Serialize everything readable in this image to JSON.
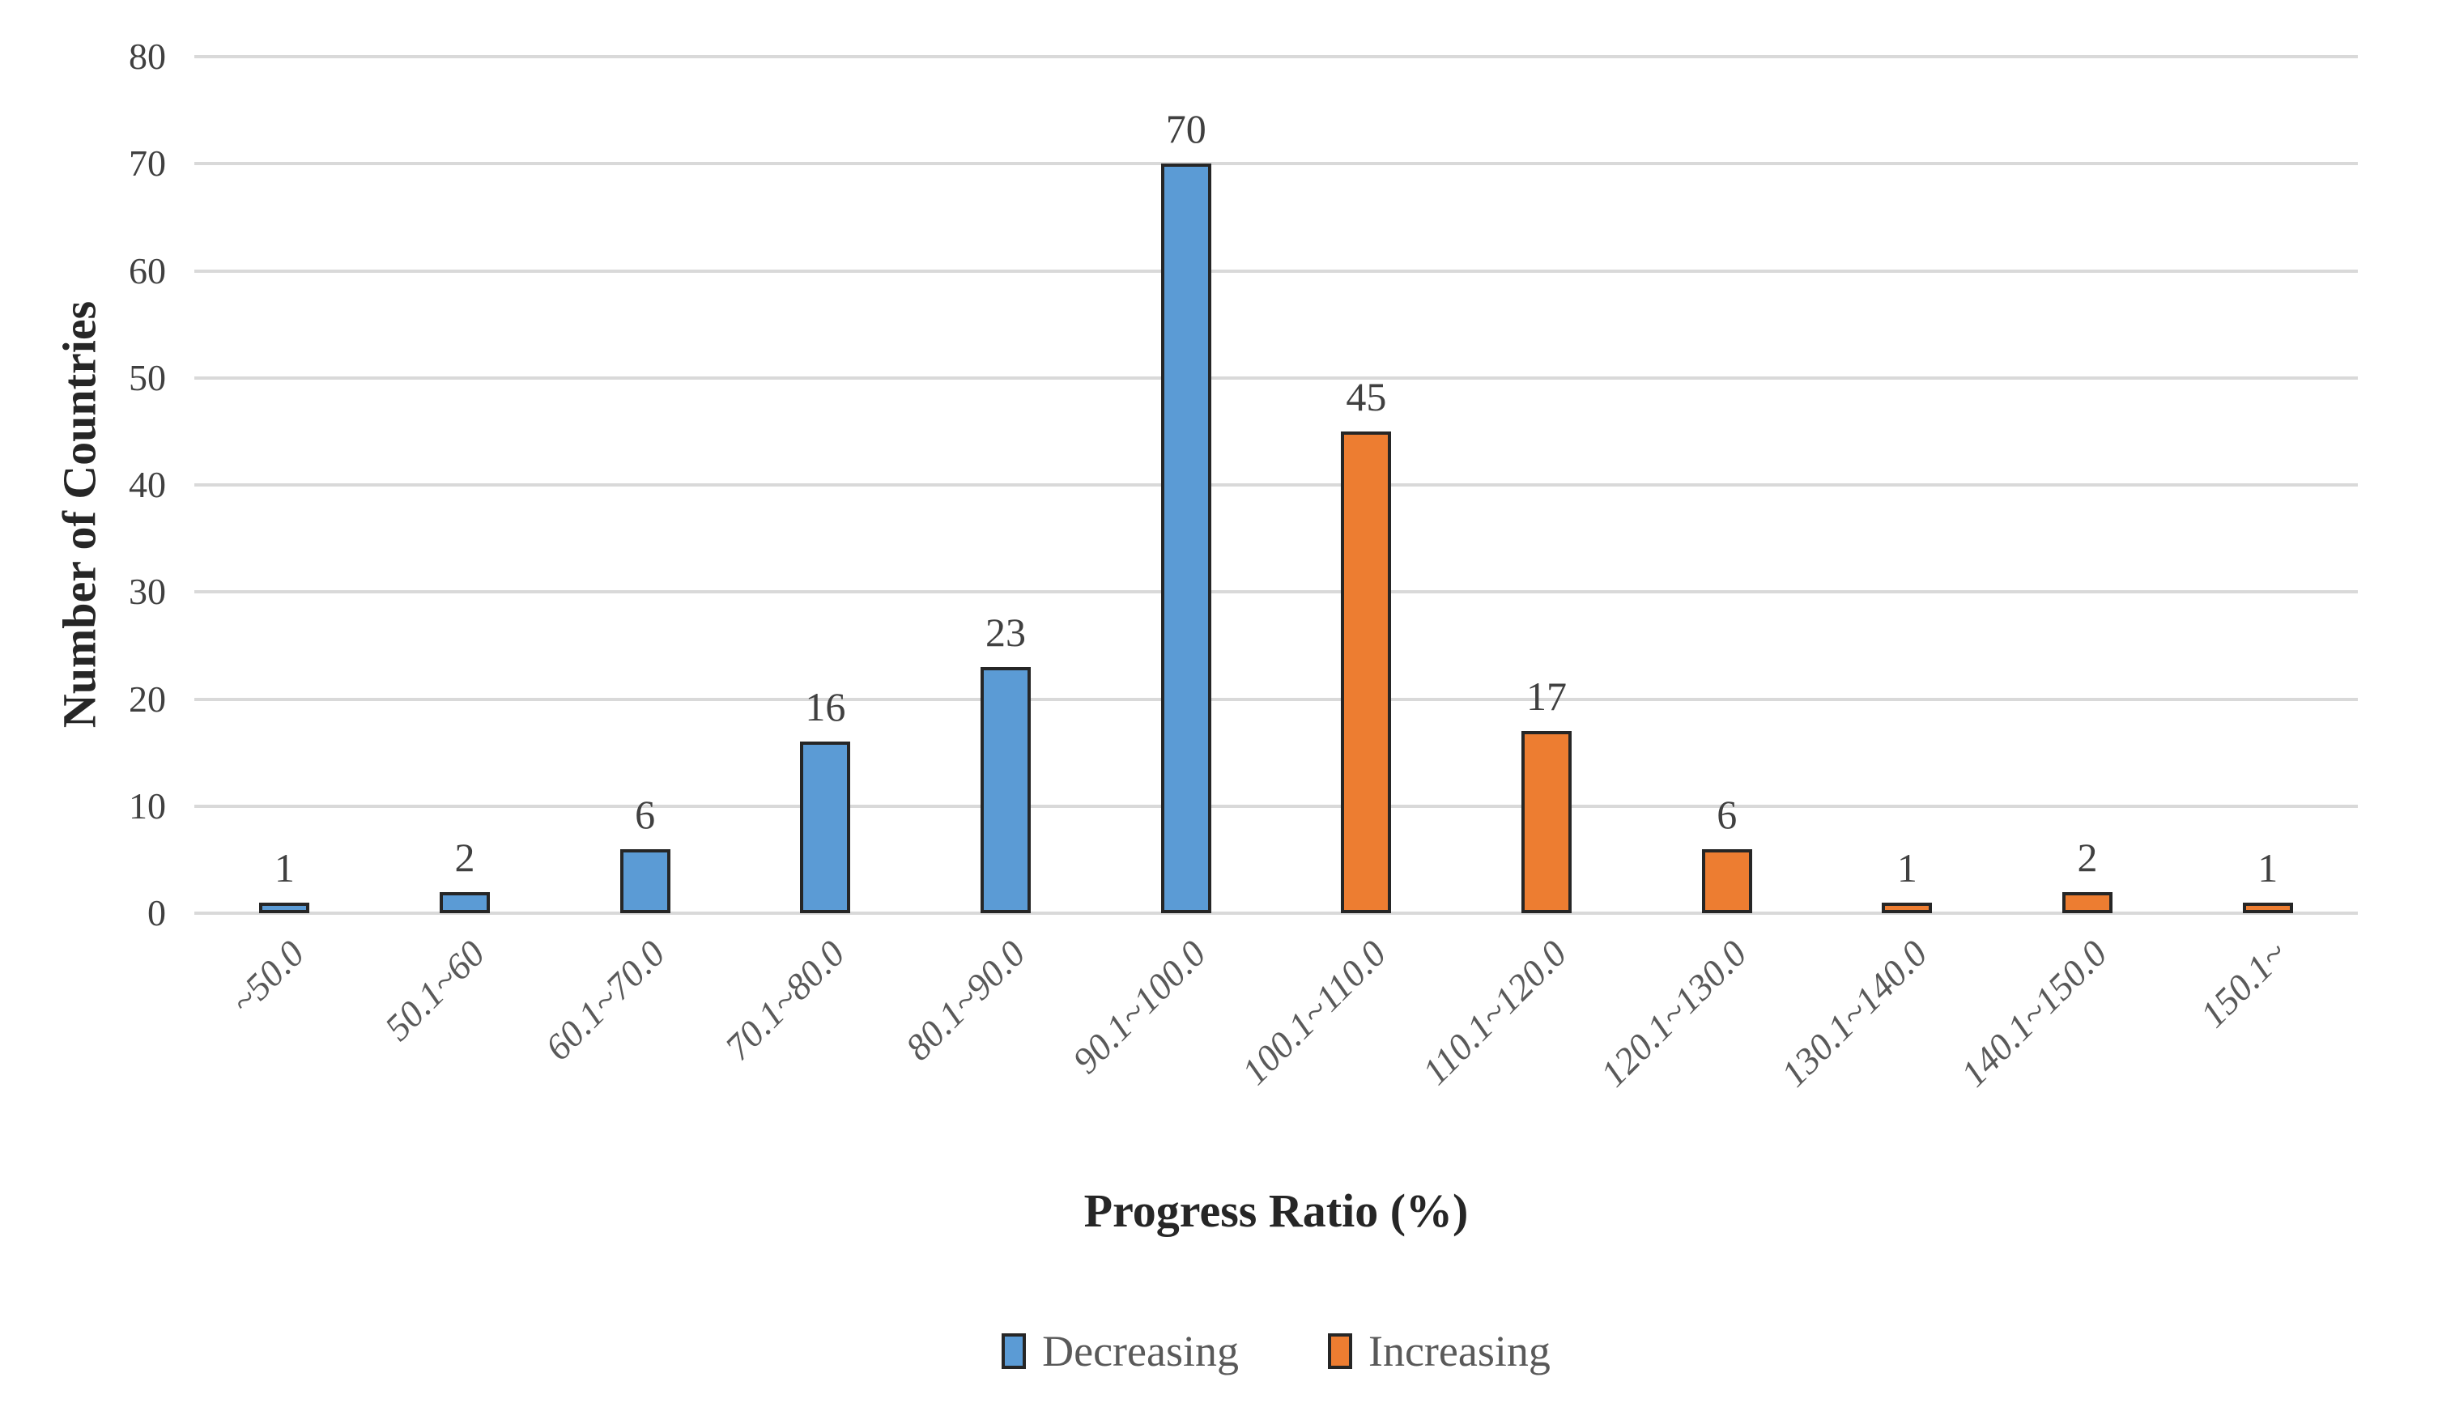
{
  "chart_data": {
    "type": "bar",
    "title": "",
    "xlabel": "Progress Ratio (%)",
    "ylabel": "Number of Countries",
    "categories": [
      "~50.0",
      "50.1~60",
      "60.1~70.0",
      "70.1~80.0",
      "80.1~90.0",
      "90.1~100.0",
      "100.1~110.0",
      "110.1~120.0",
      "120.1~130.0",
      "130.1~140.0",
      "140.1~150.0",
      "150.1~"
    ],
    "series": [
      {
        "name": "Decreasing",
        "color": "#5B9BD5",
        "values": [
          1,
          2,
          6,
          16,
          23,
          70,
          null,
          null,
          null,
          null,
          null,
          null
        ]
      },
      {
        "name": "Increasing",
        "color": "#ED7D31",
        "values": [
          null,
          null,
          null,
          null,
          null,
          null,
          45,
          17,
          6,
          1,
          2,
          1
        ]
      }
    ],
    "ylim": [
      0,
      80
    ],
    "yticks": [
      0,
      10,
      20,
      30,
      40,
      50,
      60,
      70,
      80
    ],
    "grid": true,
    "legend_position": "bottom",
    "data_labels": true,
    "colors": {
      "bar_border": "#262626",
      "gridline": "#d9d9d9",
      "tick_text": "#404040",
      "axis_title_text": "#262626",
      "legend_text": "#595959"
    }
  }
}
